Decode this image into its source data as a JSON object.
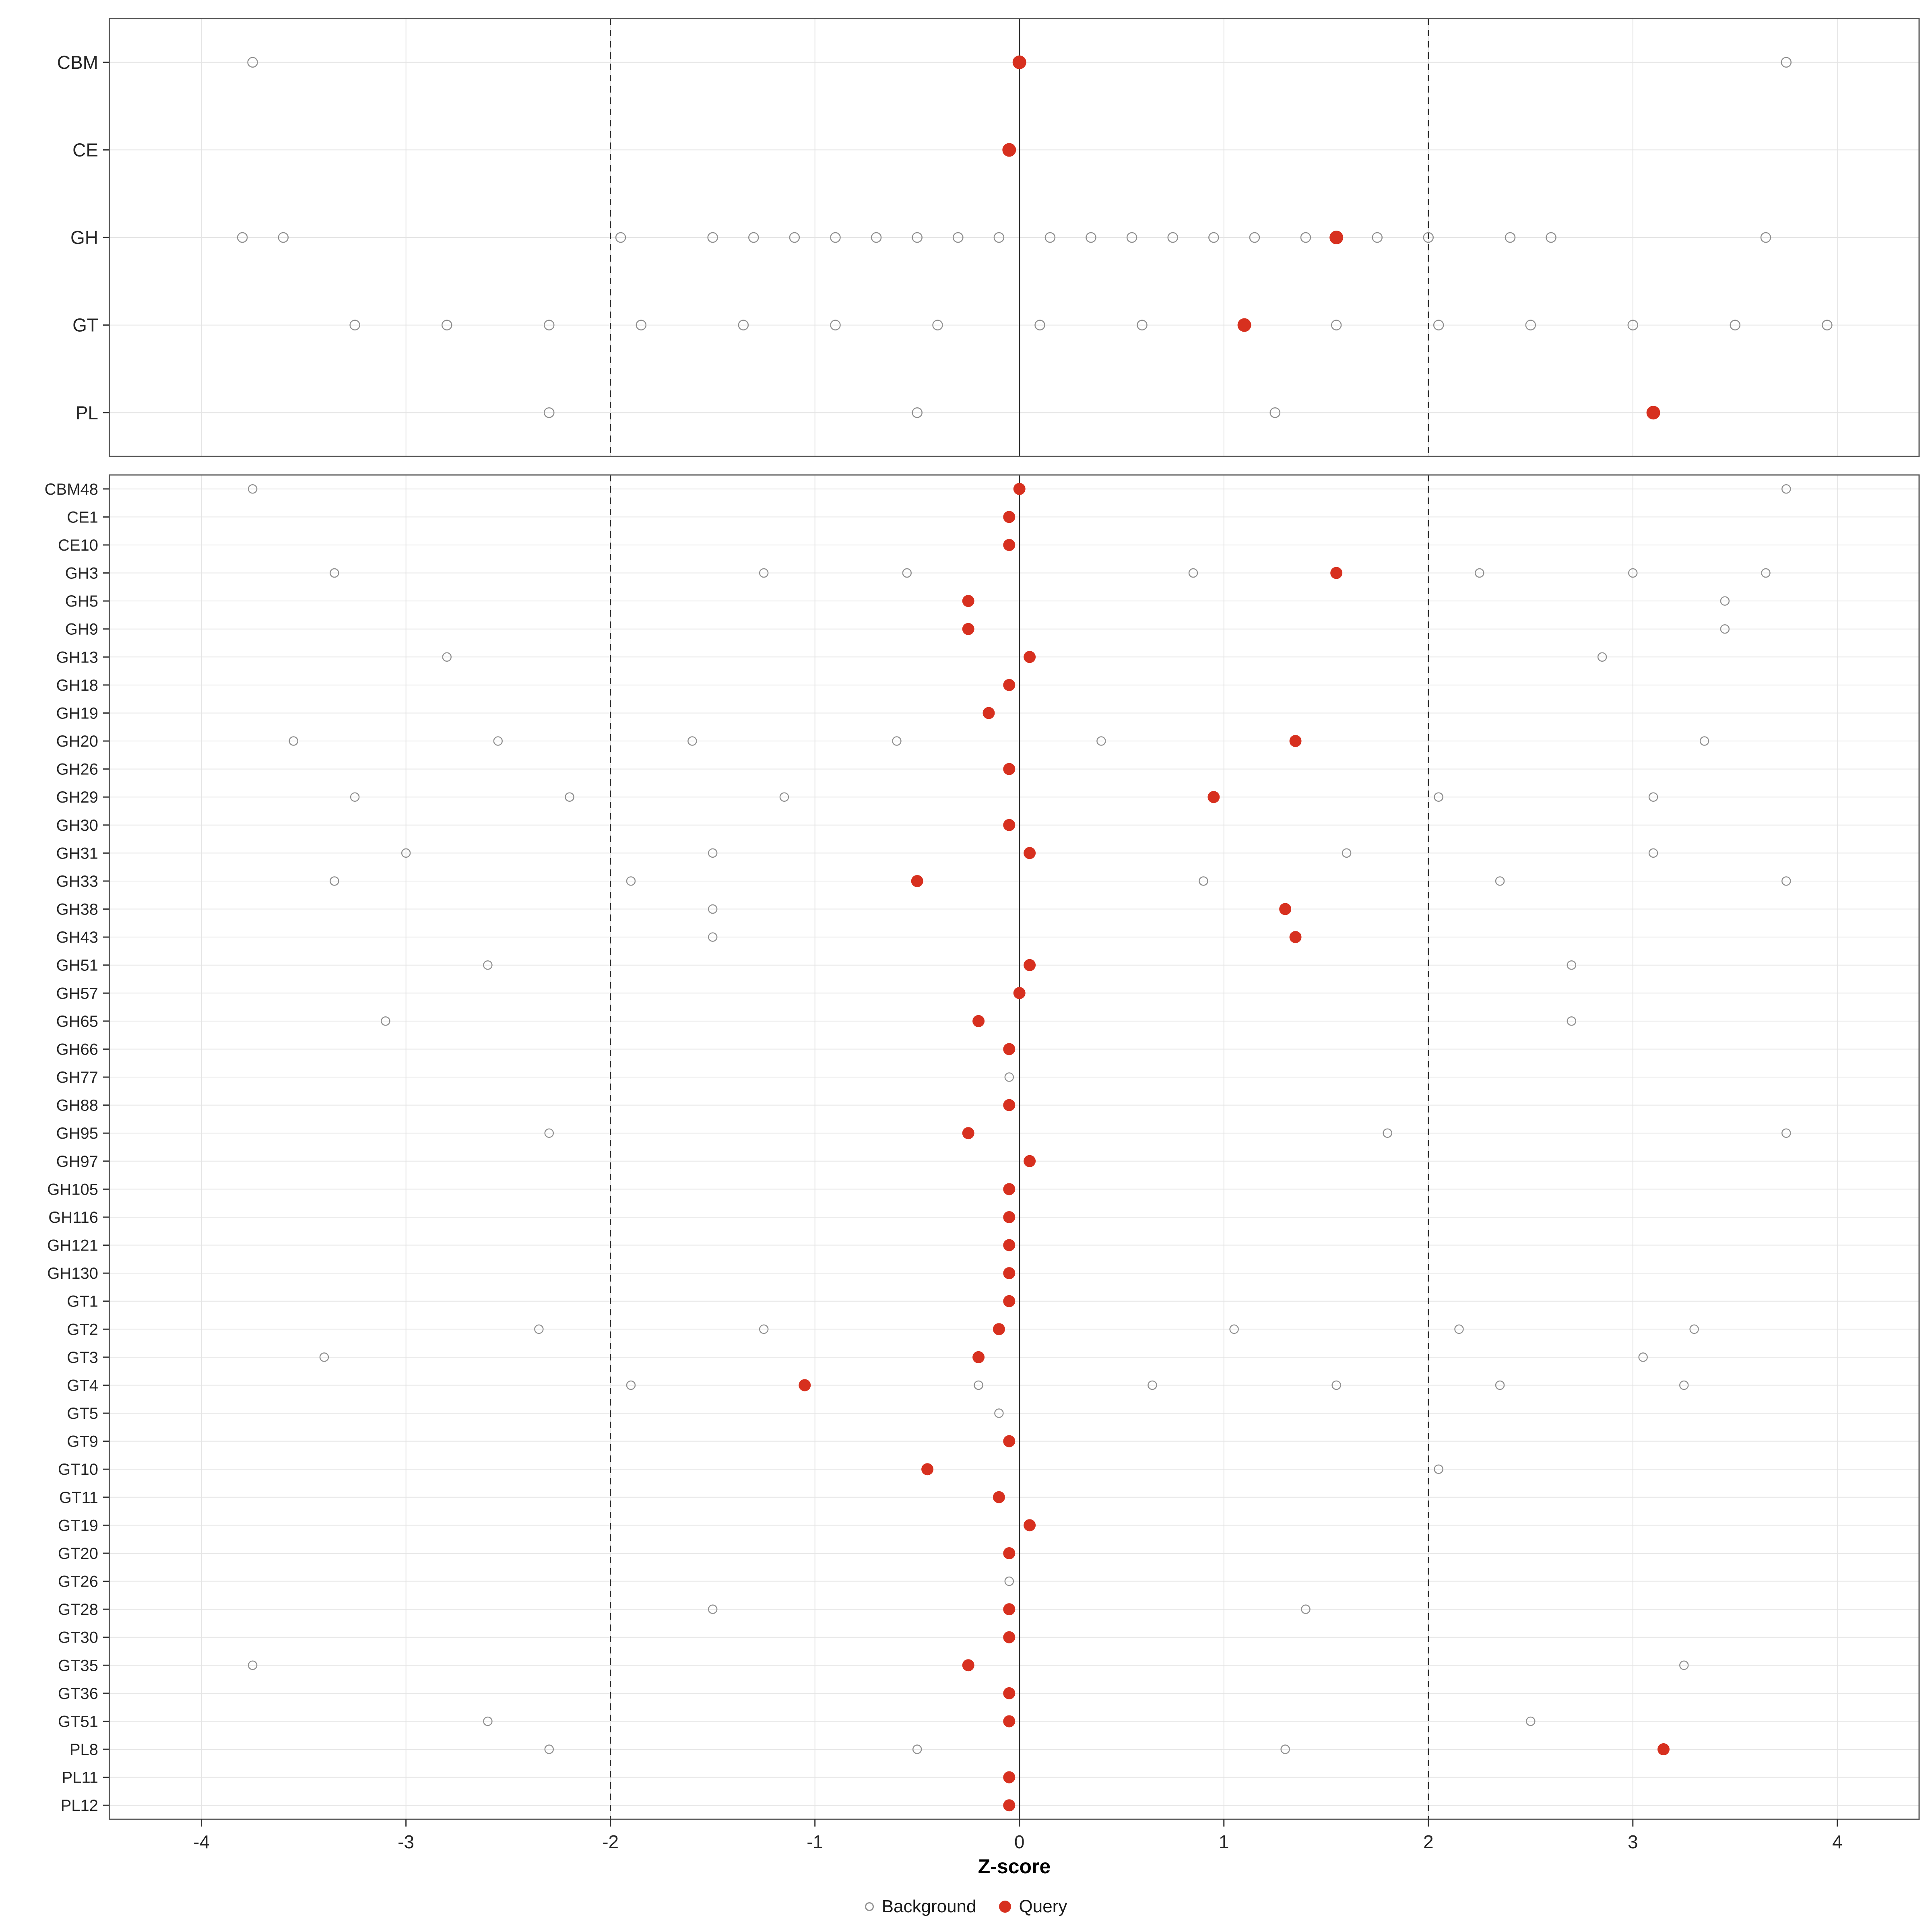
{
  "legend": {
    "background_label": "Background",
    "query_label": "Query"
  },
  "axis": {
    "ticks": [
      -4,
      -3,
      -2,
      -1,
      0,
      1,
      2,
      3,
      4
    ]
  },
  "colors": {
    "query": "#d7301f",
    "background": "#8f8f8f",
    "grid": "#e4e4e4",
    "border": "#595959",
    "vline": "#2b2b2b",
    "axis": "#333333",
    "text": "#262626"
  },
  "chart_data": {
    "type": "scatter",
    "title": "",
    "xlabel": "Z-score",
    "ylabel": "",
    "xlim": [
      -4.45,
      4.4
    ],
    "grid": true,
    "legend_position": "bottom",
    "vlines": {
      "solid": [
        0
      ],
      "dashed": [
        -2,
        2
      ]
    },
    "legend": [
      "Background",
      "Query"
    ],
    "panels": [
      {
        "name": "families",
        "rows": [
          {
            "label": "CBM",
            "query": 0.0,
            "background": [
              -3.75,
              3.75
            ]
          },
          {
            "label": "CE",
            "query": -0.05,
            "background": []
          },
          {
            "label": "GH",
            "query": 1.55,
            "background": [
              -3.8,
              -3.6,
              -1.95,
              -1.5,
              -1.3,
              -1.1,
              -0.9,
              -0.7,
              -0.5,
              -0.3,
              -0.1,
              0.15,
              0.35,
              0.55,
              0.75,
              0.95,
              1.15,
              1.4,
              1.75,
              2.0,
              2.4,
              2.6,
              3.65
            ]
          },
          {
            "label": "GT",
            "query": 1.1,
            "background": [
              -3.25,
              -2.8,
              -2.3,
              -1.85,
              -1.35,
              -0.9,
              -0.4,
              0.1,
              0.6,
              1.55,
              2.05,
              2.5,
              3.0,
              3.5,
              3.95
            ]
          },
          {
            "label": "PL",
            "query": 3.1,
            "background": [
              -2.3,
              -0.5,
              1.25
            ]
          }
        ]
      },
      {
        "name": "subfamilies",
        "rows": [
          {
            "label": "CBM48",
            "query": 0.0,
            "background": [
              -3.75,
              3.75
            ]
          },
          {
            "label": "CE1",
            "query": -0.05,
            "background": []
          },
          {
            "label": "CE10",
            "query": -0.05,
            "background": []
          },
          {
            "label": "GH3",
            "query": 1.55,
            "background": [
              -3.35,
              -1.25,
              -0.55,
              0.85,
              2.25,
              3.0,
              3.65
            ]
          },
          {
            "label": "GH5",
            "query": -0.25,
            "background": [
              3.45
            ]
          },
          {
            "label": "GH9",
            "query": -0.25,
            "background": [
              3.45
            ]
          },
          {
            "label": "GH13",
            "query": 0.05,
            "background": [
              -2.8,
              2.85
            ]
          },
          {
            "label": "GH18",
            "query": -0.05,
            "background": []
          },
          {
            "label": "GH19",
            "query": -0.15,
            "background": []
          },
          {
            "label": "GH20",
            "query": 1.35,
            "background": [
              -3.55,
              -2.55,
              -1.6,
              -0.6,
              0.4,
              3.35
            ]
          },
          {
            "label": "GH26",
            "query": -0.05,
            "background": []
          },
          {
            "label": "GH29",
            "query": 0.95,
            "background": [
              -3.25,
              -2.2,
              -1.15,
              2.05,
              3.1
            ]
          },
          {
            "label": "GH30",
            "query": -0.05,
            "background": []
          },
          {
            "label": "GH31",
            "query": 0.05,
            "background": [
              -3.0,
              -1.5,
              1.6,
              3.1
            ]
          },
          {
            "label": "GH33",
            "query": -0.5,
            "background": [
              -3.35,
              -1.9,
              0.9,
              2.35,
              3.75
            ]
          },
          {
            "label": "GH38",
            "query": 1.3,
            "background": [
              -1.5
            ]
          },
          {
            "label": "GH43",
            "query": 1.35,
            "background": [
              -1.5
            ]
          },
          {
            "label": "GH51",
            "query": 0.05,
            "background": [
              -2.6,
              2.7
            ]
          },
          {
            "label": "GH57",
            "query": 0.0,
            "background": []
          },
          {
            "label": "GH65",
            "query": -0.2,
            "background": [
              -3.1,
              2.7
            ]
          },
          {
            "label": "GH66",
            "query": -0.05,
            "background": []
          },
          {
            "label": "GH77",
            "query": null,
            "background": [
              -0.05
            ]
          },
          {
            "label": "GH88",
            "query": -0.05,
            "background": []
          },
          {
            "label": "GH95",
            "query": -0.25,
            "background": [
              -2.3,
              1.8,
              3.75
            ]
          },
          {
            "label": "GH97",
            "query": 0.05,
            "background": []
          },
          {
            "label": "GH105",
            "query": -0.05,
            "background": []
          },
          {
            "label": "GH116",
            "query": -0.05,
            "background": []
          },
          {
            "label": "GH121",
            "query": -0.05,
            "background": []
          },
          {
            "label": "GH130",
            "query": -0.05,
            "background": []
          },
          {
            "label": "GT1",
            "query": -0.05,
            "background": []
          },
          {
            "label": "GT2",
            "query": -0.1,
            "background": [
              -2.35,
              -1.25,
              1.05,
              2.15,
              3.3
            ]
          },
          {
            "label": "GT3",
            "query": -0.2,
            "background": [
              -3.4,
              3.05
            ]
          },
          {
            "label": "GT4",
            "query": -1.05,
            "background": [
              -1.9,
              -0.2,
              0.65,
              1.55,
              2.35,
              3.25
            ]
          },
          {
            "label": "GT5",
            "query": null,
            "background": [
              -0.1
            ]
          },
          {
            "label": "GT9",
            "query": -0.05,
            "background": []
          },
          {
            "label": "GT10",
            "query": -0.45,
            "background": [
              2.05
            ]
          },
          {
            "label": "GT11",
            "query": -0.1,
            "background": []
          },
          {
            "label": "GT19",
            "query": 0.05,
            "background": []
          },
          {
            "label": "GT20",
            "query": -0.05,
            "background": []
          },
          {
            "label": "GT26",
            "query": null,
            "background": [
              -0.05
            ]
          },
          {
            "label": "GT28",
            "query": -0.05,
            "background": [
              -1.5,
              1.4
            ]
          },
          {
            "label": "GT30",
            "query": -0.05,
            "background": []
          },
          {
            "label": "GT35",
            "query": -0.25,
            "background": [
              -3.75,
              3.25
            ]
          },
          {
            "label": "GT36",
            "query": -0.05,
            "background": []
          },
          {
            "label": "GT51",
            "query": -0.05,
            "background": [
              -2.6,
              2.5
            ]
          },
          {
            "label": "PL8",
            "query": 3.15,
            "background": [
              -2.3,
              -0.5,
              1.3
            ]
          },
          {
            "label": "PL11",
            "query": -0.05,
            "background": []
          },
          {
            "label": "PL12",
            "query": -0.05,
            "background": []
          }
        ]
      }
    ]
  }
}
